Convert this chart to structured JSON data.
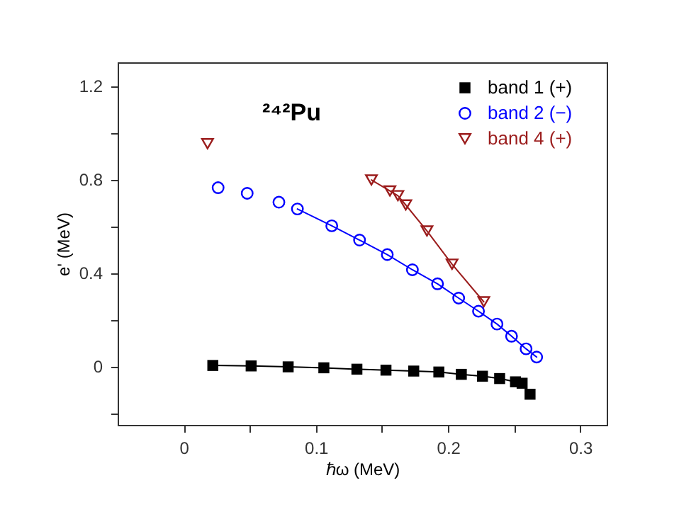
{
  "chart_data": {
    "type": "scatter",
    "xlabel": "ℏω (MeV)",
    "ylabel": "e' (MeV)",
    "annotations": [
      "²⁴²Pu"
    ],
    "xlim": [
      -0.05,
      0.32
    ],
    "ylim": [
      -0.25,
      1.3
    ],
    "xticks": [
      0,
      {
        "value": 0.05,
        "label": null
      },
      0.1,
      {
        "value": 0.15,
        "label": null
      },
      0.2,
      {
        "value": 0.25,
        "label": null
      },
      0.3
    ],
    "yticks": [
      {
        "value": -0.2,
        "label": null
      },
      0,
      {
        "value": 0.2,
        "label": null
      },
      0.4,
      {
        "value": 0.6,
        "label": null
      },
      0.8,
      {
        "value": 1.0,
        "label": null
      },
      1.2
    ],
    "grid": false,
    "legend": "top right",
    "series": [
      {
        "name": "band 1 (+)",
        "type": "line",
        "marker": "square",
        "color": "#000000",
        "x": [
          0.022,
          0.051,
          0.079,
          0.106,
          0.131,
          0.153,
          0.174,
          0.193,
          0.21,
          0.226,
          0.239,
          0.251,
          0.256,
          0.262
        ],
        "values": [
          0.004,
          0.002,
          -0.002,
          -0.006,
          -0.012,
          -0.016,
          -0.02,
          -0.024,
          -0.034,
          -0.042,
          -0.052,
          -0.066,
          -0.072,
          -0.119
        ]
      },
      {
        "name": "band 2 (−)",
        "marker": "circle",
        "color": "#0000ff",
        "x": [
          0.026,
          0.048,
          0.072,
          0.086,
          0.112,
          0.133,
          0.154,
          0.173,
          0.192,
          0.208,
          0.223,
          0.237,
          0.248,
          0.259,
          0.267
        ],
        "values": [
          0.764,
          0.74,
          0.702,
          0.673,
          0.601,
          0.54,
          0.478,
          0.413,
          0.353,
          0.292,
          0.236,
          0.181,
          0.129,
          0.075,
          0.04
        ]
      },
      {
        "type": "line",
        "marker": "none",
        "color": "#0000ff",
        "x": [
          0.086,
          0.112,
          0.133,
          0.154,
          0.173,
          0.192,
          0.208,
          0.223,
          0.237,
          0.248,
          0.259,
          0.267
        ],
        "values": [
          0.673,
          0.601,
          0.54,
          0.478,
          0.413,
          0.353,
          0.292,
          0.236,
          0.181,
          0.129,
          0.075,
          0.04
        ]
      },
      {
        "name": "band 4 (+)",
        "marker": "triangle",
        "color": "#9b1c1c",
        "x": [
          0.018,
          0.142,
          0.156,
          0.162,
          0.168,
          0.184,
          0.203,
          0.227
        ],
        "values": [
          0.952,
          0.797,
          0.75,
          0.73,
          0.69,
          0.579,
          0.437,
          0.276
        ]
      },
      {
        "type": "line",
        "marker": "none",
        "color": "#9b1c1c",
        "x": [
          0.142,
          0.156,
          0.162,
          0.168,
          0.184,
          0.203,
          0.227
        ],
        "values": [
          0.797,
          0.75,
          0.73,
          0.69,
          0.579,
          0.437,
          0.276
        ]
      }
    ]
  }
}
